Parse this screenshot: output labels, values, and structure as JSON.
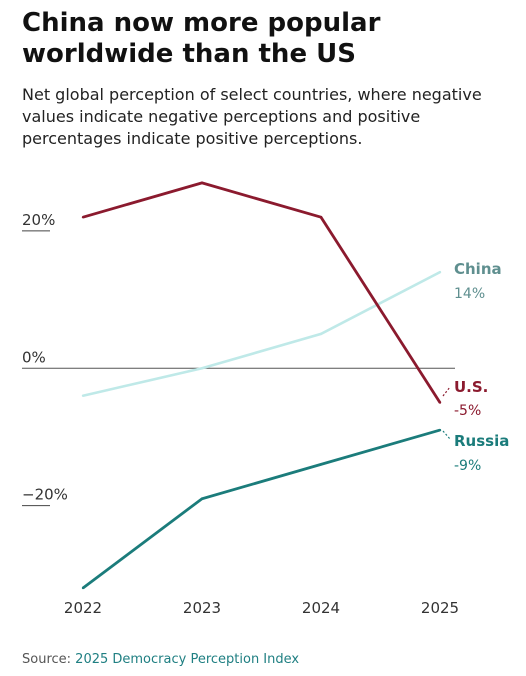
{
  "title": "China now more popular worldwide than the US",
  "subtitle": "Net global perception of select countries, where negative values indicate negative perceptions and positive percentages indicate positive perceptions.",
  "source": {
    "prefix": "Source:",
    "name": "2025 Democracy Perception Index"
  },
  "colors": {
    "us": "#8b1a2e",
    "china": "#bfe9e8",
    "russia": "#1b7c7b",
    "china_label": "#5f8f8f",
    "zero_line": "#555555",
    "tick_text": "#333333"
  },
  "chart_data": {
    "type": "line",
    "x": [
      "2022",
      "2023",
      "2024",
      "2025"
    ],
    "ylim": [
      -32,
      28
    ],
    "y_ticks": [
      {
        "value": 20,
        "label": "20%"
      },
      {
        "value": 0,
        "label": "0%"
      },
      {
        "value": -20,
        "label": "−20%"
      }
    ],
    "series": [
      {
        "name": "U.S.",
        "key": "us",
        "values": [
          22,
          27,
          22,
          -5
        ],
        "end_label": "-5%"
      },
      {
        "name": "China",
        "key": "china",
        "values": [
          -4,
          0,
          5,
          14
        ],
        "end_label": "14%"
      },
      {
        "name": "Russia",
        "key": "russia",
        "values": [
          -32,
          -19,
          -14,
          -9
        ],
        "end_label": "-9%"
      }
    ]
  }
}
